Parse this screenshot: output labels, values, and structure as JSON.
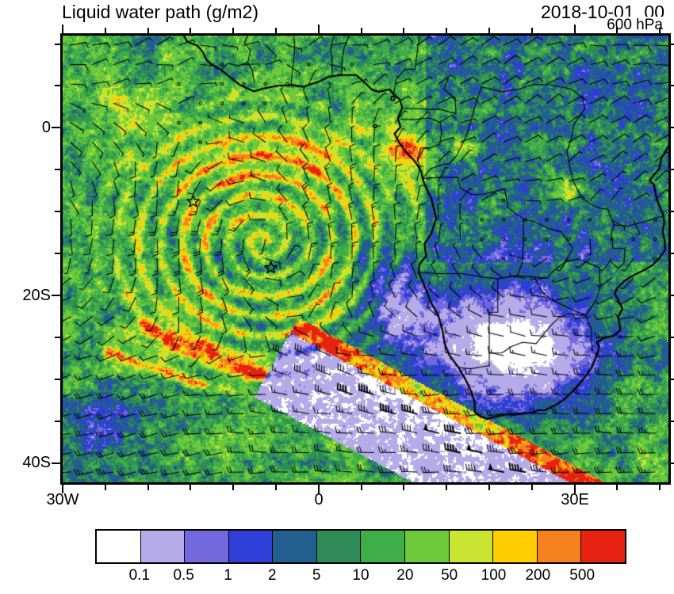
{
  "header": {
    "title": "Liquid water path (g/m2)",
    "datetime": "2018-10-01_00",
    "level": "600 hPa"
  },
  "axes": {
    "lat_tick_labels": [
      {
        "label": "0",
        "lat": 0
      },
      {
        "label": "20S",
        "lat": -20
      },
      {
        "label": "40S",
        "lat": -40
      }
    ],
    "lon_tick_labels": [
      {
        "label": "30W",
        "lon": -30
      },
      {
        "label": "0",
        "lon": 0
      },
      {
        "label": "30E",
        "lon": 30
      }
    ],
    "minor_tick_deg": 5
  },
  "colorbar": {
    "tick_labels": [
      "0.1",
      "0.5",
      "1",
      "2",
      "5",
      "10",
      "20",
      "50",
      "100",
      "200",
      "500"
    ],
    "cell_colors": [
      "#FFFFFF",
      "#B5ABE8",
      "#7468DE",
      "#2E3ED6",
      "#235F8E",
      "#2E8B57",
      "#3FAE49",
      "#6FCA3B",
      "#C9E532",
      "#FFCE00",
      "#F5821F",
      "#E82210"
    ]
  },
  "chart_data": {
    "type": "heatmap",
    "title": "Liquid water path (g/m2)",
    "valid_time": "2018-10-01_00",
    "pressure_level": "600 hPa",
    "units": "g/m2",
    "contour_levels": [
      0.1,
      0.5,
      1,
      2,
      5,
      10,
      20,
      50,
      100,
      200,
      500
    ],
    "region": {
      "lon_min": -30,
      "lon_max": 41,
      "lat_min": -42.3,
      "lat_max": 11
    },
    "overlays": [
      "wind barbs",
      "coastlines",
      "country borders",
      "star markers"
    ],
    "markers": [
      {
        "type": "star",
        "lon": -14.7,
        "lat": -8.8
      },
      {
        "type": "star",
        "lon": -5.6,
        "lat": -16.7
      }
    ],
    "features": [
      {
        "name": "cyclonic spiral cloud system",
        "center": [
          -6.5,
          -13.5
        ],
        "radius_deg": 22,
        "values": "20-200 g/m2 in banded arcs"
      },
      {
        "name": "ITCZ convective band",
        "lat_center": -3.5,
        "lon_range": [
          -22,
          6
        ],
        "values": "100-500"
      },
      {
        "name": "frontal rope cloud streaks",
        "from": [
          -20,
          -24
        ],
        "to": [
          -7,
          -29.5
        ],
        "values": "200 to >500"
      },
      {
        "name": "cold front cloud band",
        "from": [
          0,
          -26
        ],
        "to": [
          32,
          -43.5
        ],
        "values": "200 to >500"
      },
      {
        "name": "post-frontal clear slot southeast of cold front",
        "values": "<0.1"
      },
      {
        "name": "clear subtropical interior of southern Africa",
        "center": [
          23,
          -26
        ],
        "values": "<0.1"
      },
      {
        "name": "speckled trade-cumulus field over oceans",
        "values": "10-100"
      }
    ]
  }
}
